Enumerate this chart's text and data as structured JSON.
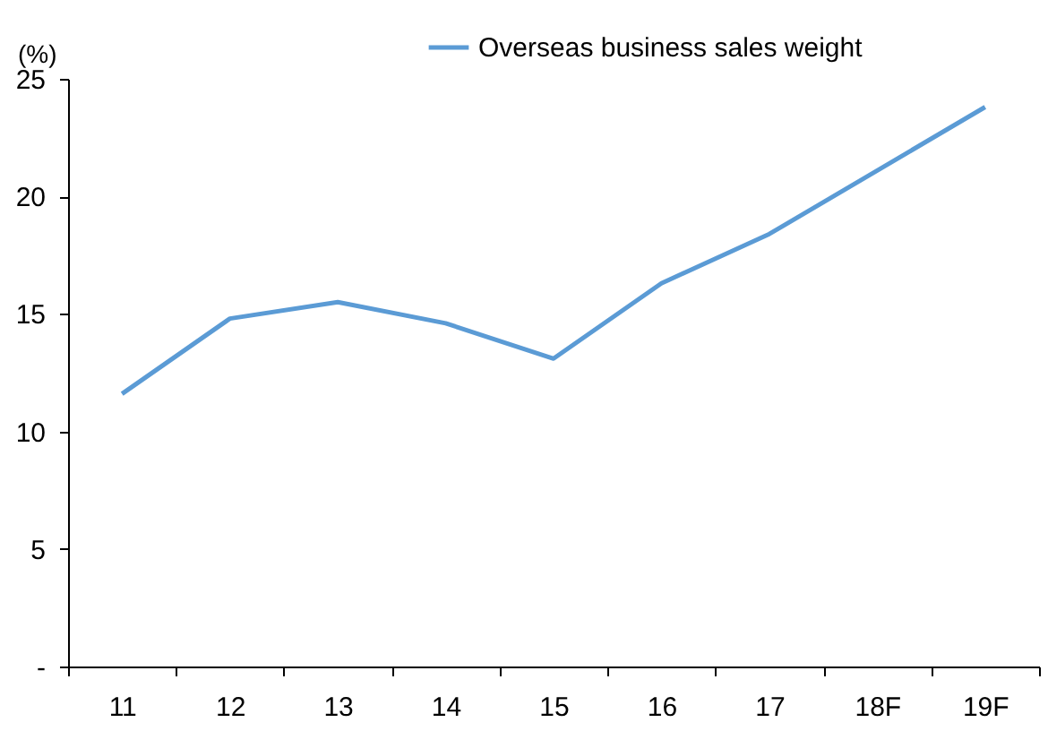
{
  "chart_data": {
    "type": "line",
    "ylabel": "(%)",
    "categories": [
      "11",
      "12",
      "13",
      "14",
      "15",
      "16",
      "17",
      "18F",
      "19F"
    ],
    "series": [
      {
        "name": "Overseas business sales weight",
        "color": "#5b9bd5",
        "values": [
          11.6,
          14.8,
          15.5,
          14.6,
          13.1,
          16.3,
          18.4,
          21.1,
          23.8
        ]
      }
    ],
    "ylim": [
      0,
      25
    ],
    "yticks": [
      {
        "value": 0,
        "label": "-"
      },
      5,
      10,
      15,
      20,
      25
    ],
    "grid": false,
    "legend": "top right",
    "marker": "none",
    "line_style": "solid"
  }
}
